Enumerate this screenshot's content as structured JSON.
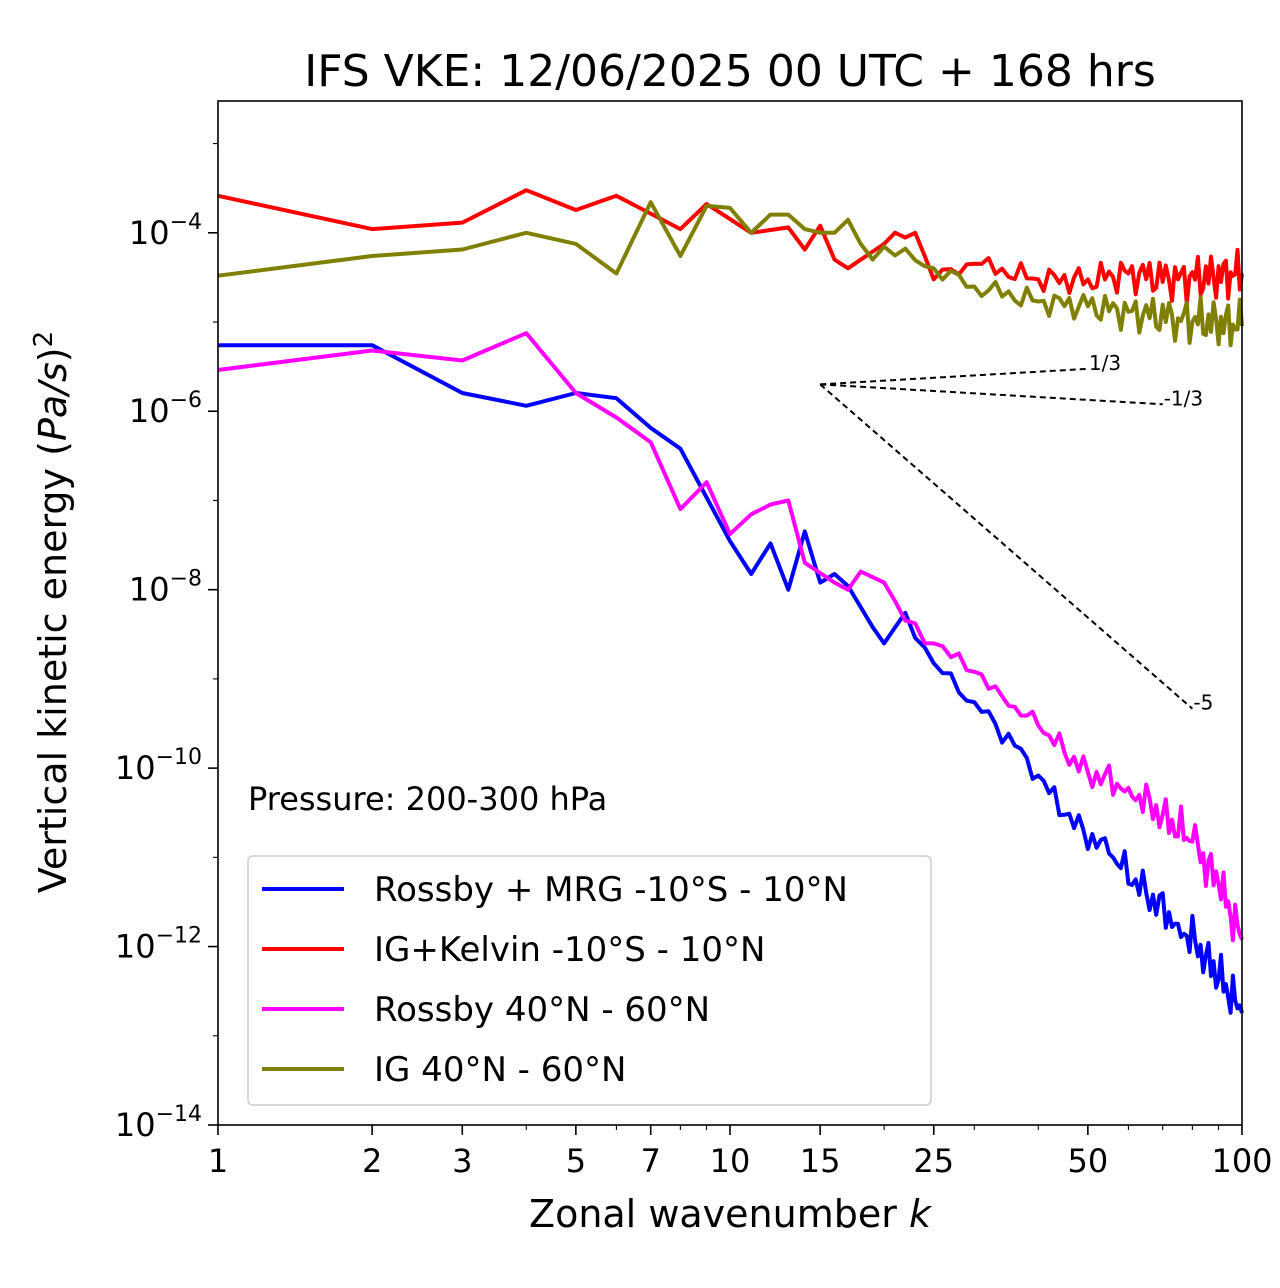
{
  "chart_data": {
    "type": "line",
    "title": "IFS VKE: 12/06/2025 00 UTC + 168 hrs",
    "xlabel": "Zonal wavenumber k",
    "ylabel": "Vertical kinetic energy (Pa/s)²",
    "xscale": "log",
    "yscale": "log",
    "xlim": [
      1,
      100
    ],
    "ylim": [
      1e-14,
      0.003
    ],
    "x_ticks": [
      1,
      2,
      3,
      5,
      7,
      10,
      15,
      25,
      50,
      100
    ],
    "x_tick_labels": [
      "1",
      "2",
      "3",
      "5",
      "7",
      "10",
      "15",
      "25",
      "50",
      "100"
    ],
    "y_ticks": [
      1e-14,
      1e-12,
      1e-10,
      1e-08,
      1e-06,
      0.0001
    ],
    "y_tick_base": "10",
    "y_tick_exponents": [
      "−14",
      "−12",
      "−10",
      "−8",
      "−6",
      "−4"
    ],
    "annotation": "Pressure: 200-300 hPa",
    "legend_position": "lower-left",
    "grid": false,
    "series": [
      {
        "name": "Rossby + MRG -10°S - 10°N",
        "color": "#0000ff",
        "anchors": [
          [
            1,
            5.5e-06
          ],
          [
            2,
            5.5e-06
          ],
          [
            3,
            1.6e-06
          ],
          [
            4,
            1.15e-06
          ],
          [
            5,
            1.6e-06
          ],
          [
            6,
            1.4e-06
          ],
          [
            7,
            6.5e-07
          ],
          [
            8,
            3.8e-07
          ],
          [
            10,
            3.5e-08
          ],
          [
            11,
            1.5e-08
          ],
          [
            12,
            3.3e-08
          ],
          [
            13,
            1e-08
          ],
          [
            14,
            4.5e-08
          ],
          [
            15,
            1.2e-08
          ],
          [
            16,
            1.5e-08
          ],
          [
            17,
            1.1e-08
          ],
          [
            19,
            3.8e-09
          ],
          [
            20,
            2.5e-09
          ],
          [
            22,
            5.5e-09
          ],
          [
            25,
            1.5e-09
          ],
          [
            30,
            5.5e-10
          ],
          [
            38,
            1.3e-10
          ],
          [
            45,
            3e-11
          ],
          [
            55,
            1.1e-11
          ],
          [
            65,
            4e-12
          ],
          [
            75,
            1.8e-12
          ],
          [
            85,
            8e-13
          ],
          [
            100,
            1.8e-13
          ]
        ]
      },
      {
        "name": "IG+Kelvin -10°S - 10°N",
        "color": "#ff0000",
        "anchors": [
          [
            1,
            0.00026
          ],
          [
            2,
            0.00011
          ],
          [
            3,
            0.00013
          ],
          [
            4,
            0.0003
          ],
          [
            5,
            0.00018
          ],
          [
            6,
            0.00026
          ],
          [
            8,
            0.00011
          ],
          [
            9,
            0.00021
          ],
          [
            11,
            0.0001
          ],
          [
            13,
            0.000115
          ],
          [
            14,
            6.5e-05
          ],
          [
            15,
            0.00012
          ],
          [
            16,
            5e-05
          ],
          [
            17,
            4e-05
          ],
          [
            20,
            7.5e-05
          ],
          [
            23,
            0.0001
          ],
          [
            25,
            3e-05
          ],
          [
            30,
            4.5e-05
          ],
          [
            40,
            3e-05
          ],
          [
            50,
            3e-05
          ],
          [
            60,
            3.5e-05
          ],
          [
            75,
            3e-05
          ],
          [
            100,
            3.5e-05
          ]
        ]
      },
      {
        "name": "Rossby 40°N - 60°N",
        "color": "#ff00ff",
        "anchors": [
          [
            1,
            2.9e-06
          ],
          [
            2,
            4.8e-06
          ],
          [
            3,
            3.7e-06
          ],
          [
            4,
            7.5e-06
          ],
          [
            5,
            1.6e-06
          ],
          [
            6,
            8.5e-07
          ],
          [
            7,
            4.5e-07
          ],
          [
            8,
            8e-08
          ],
          [
            9,
            1.6e-07
          ],
          [
            10,
            4.2e-08
          ],
          [
            11,
            7e-08
          ],
          [
            12,
            9e-08
          ],
          [
            13,
            1e-07
          ],
          [
            14,
            2e-08
          ],
          [
            16,
            1.2e-08
          ],
          [
            17,
            1e-08
          ],
          [
            18,
            1.6e-08
          ],
          [
            20,
            1.2e-08
          ],
          [
            22,
            4.5e-09
          ],
          [
            25,
            2.5e-09
          ],
          [
            30,
            1.2e-09
          ],
          [
            35,
            5e-10
          ],
          [
            40,
            3e-10
          ],
          [
            45,
            1.5e-10
          ],
          [
            50,
            9e-11
          ],
          [
            60,
            6e-11
          ],
          [
            70,
            3e-11
          ],
          [
            80,
            1.5e-11
          ],
          [
            90,
            5e-12
          ],
          [
            100,
            1.2e-12
          ]
        ]
      },
      {
        "name": "IG 40°N - 60°N",
        "color": "#808000",
        "anchors": [
          [
            1,
            3.3e-05
          ],
          [
            2,
            5.5e-05
          ],
          [
            3,
            6.5e-05
          ],
          [
            4,
            0.0001
          ],
          [
            5,
            7.5e-05
          ],
          [
            6,
            3.5e-05
          ],
          [
            7,
            0.00022
          ],
          [
            8,
            5.5e-05
          ],
          [
            9,
            0.0002
          ],
          [
            10,
            0.00019
          ],
          [
            11,
            0.0001
          ],
          [
            12,
            0.00016
          ],
          [
            13,
            0.00016
          ],
          [
            14,
            0.00011
          ],
          [
            15,
            0.0001
          ],
          [
            16,
            0.0001
          ],
          [
            17,
            0.00014
          ],
          [
            18,
            7.5e-05
          ],
          [
            19,
            5e-05
          ],
          [
            20,
            7e-05
          ],
          [
            25,
            4e-05
          ],
          [
            30,
            2.5e-05
          ],
          [
            40,
            1.7e-05
          ],
          [
            50,
            1.5e-05
          ],
          [
            60,
            1.3e-05
          ],
          [
            75,
            1.1e-05
          ],
          [
            100,
            9e-06
          ]
        ]
      }
    ],
    "reference_slopes": [
      {
        "label": "1/3",
        "k_start": 15,
        "k_end": 50,
        "y_start": 2e-06
      },
      {
        "label": "-1/3",
        "k_start": 15,
        "k_end": 70,
        "y_start": 2e-06
      },
      {
        "label": "-5",
        "k_start": 15,
        "k_end": 80,
        "y_start": 2e-06
      }
    ]
  }
}
